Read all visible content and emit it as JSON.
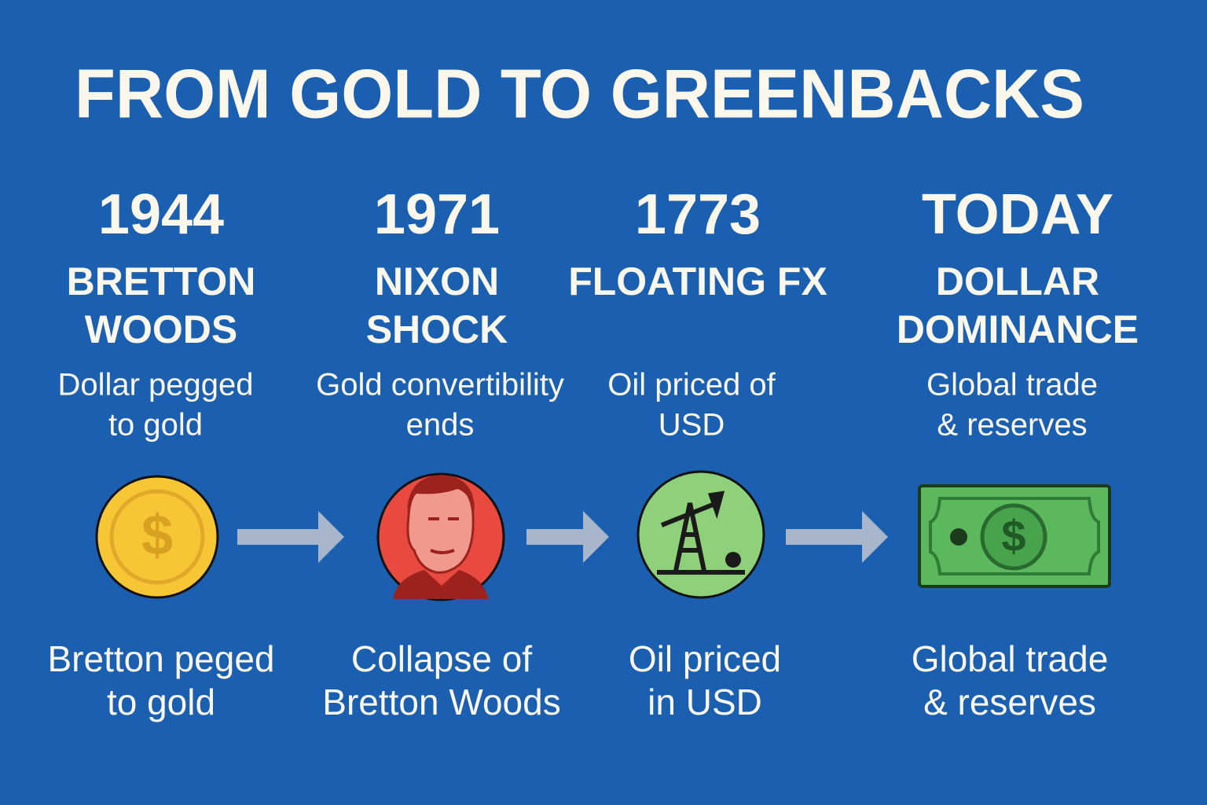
{
  "title": "FROM GOLD TO GREENBACKS",
  "stages": [
    {
      "year": "1944",
      "heading": [
        "BRETTON",
        "WOODS"
      ],
      "description": [
        "Dollar pegged",
        "to gold"
      ],
      "icon_text": "$",
      "caption": [
        "Bretton peged",
        "to gold"
      ]
    },
    {
      "year": "1971",
      "heading": [
        "NIXON",
        "SHOCK"
      ],
      "description": [
        "Gold convertibility",
        "ends"
      ],
      "caption": [
        "Collapse of",
        "Bretton Woods"
      ]
    },
    {
      "year": "1773",
      "heading": [
        "FLOATING FX"
      ],
      "description": [
        "Oil priced of",
        "USD"
      ],
      "caption": [
        "Oil priced",
        "in USD"
      ]
    },
    {
      "year": "TODAY",
      "heading": [
        "DOLLAR",
        "DOMINANCE"
      ],
      "description": [
        "Global trade",
        "& reserves"
      ],
      "icon_text": "$",
      "caption": [
        "Global trade",
        "& reserves"
      ]
    }
  ]
}
